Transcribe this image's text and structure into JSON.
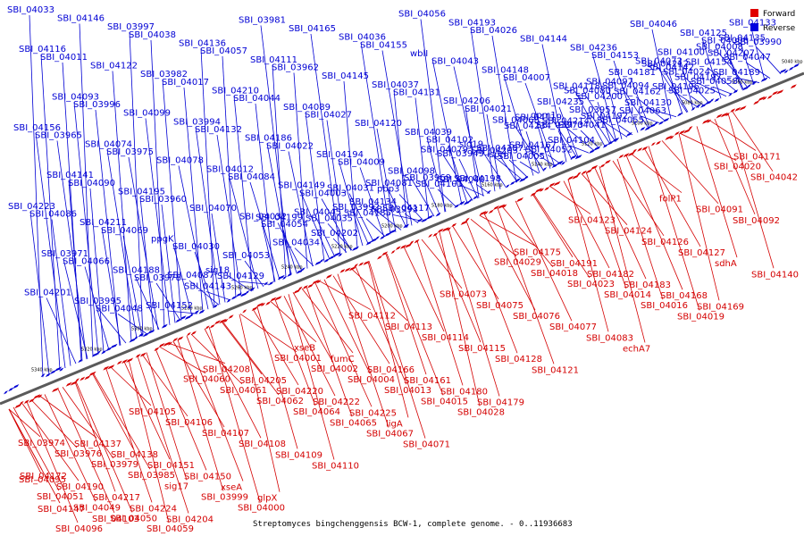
{
  "caption": "Streptomyces bingchenggensis BCW-1, complete genome. - 0..11936683",
  "legend": [
    {
      "label": "Forward",
      "color": "#e00000"
    },
    {
      "label": "Reverse",
      "color": "#0000e0"
    }
  ],
  "colors": {
    "forward": "#d40000",
    "reverse": "#0000d4",
    "backbone": "#5a5a5a"
  },
  "ticks": [
    "5340 kbp",
    "5320 kbp",
    "5300 kbp",
    "5280 kbp",
    "5260 kbp",
    "5240 kbp",
    "5220 kbp",
    "5200 kbp",
    "5180 kbp",
    "5160 kbp",
    "5140 kbp",
    "5120 kbp",
    "5100 kbp",
    "5080 kbp",
    "5060 kbp",
    "5040 kbp"
  ],
  "reverse_labels": [
    "SBI_04033",
    "SBI_04011",
    "SBI_03996",
    "SBI_03975",
    "SBI_03960",
    "SBI_04030",
    "sig18",
    "SBI_03981",
    "SBI_03962",
    "SBI_04027",
    "SBI_04009",
    "SBI_03993",
    "SBI_03969",
    "SBI_03949",
    "SBI_04026",
    "SBI_04007",
    "SBI_03973",
    "SBI_03957",
    "SBI_04094",
    "SBI_04072",
    "SBI_04025",
    "SBI_04006",
    "SBI_03990",
    "SBI_03965",
    "SBI_04090",
    "SBI_04069",
    "SBI_03978",
    "SBI_04087",
    "SBI_04057",
    "SBI_04044",
    "SBI_04022",
    "SBI_04003",
    "SBI_03992",
    "SBI_04081",
    "SBI_04056",
    "SBI_04043",
    "SBI_04021",
    "SBI_04005",
    "gpm1",
    "SBI_04080",
    "SBI_04055",
    "SBI_04046",
    "SBI_04024",
    "SBI_04008",
    "SBI_04133",
    "SBI_04086",
    "SBI_04066",
    "SBI_04048",
    "SBI_04038",
    "SBI_04017",
    "SBI_04132",
    "SBI_04084",
    "SBI_04054",
    "SBI_04045",
    "SBI_04031",
    "SBI_04155",
    "SBI_04131",
    "SBI_04102",
    "sig19",
    "SBI_04068",
    "SBI_04052",
    "SBI_04041",
    "SBI_04153",
    "SBI_04130",
    "SBI_04100",
    "SBI_04058",
    "SBI_04047",
    "SBI_04201",
    "SBI_04146",
    "SBI_04122",
    "SBI_04099",
    "SBI_04078",
    "SBI_04070",
    "SBI_04053",
    "SBI_04199",
    "SBI_04165",
    "SBI_04145",
    "SBI_04120",
    "SBI_04098",
    "SBI_04079",
    "SBI_04198",
    "ispH",
    "SBI_04144",
    "SBI_04118",
    "SBI_04097",
    "SBI_04063",
    "SBI_04196",
    "SBI_04154",
    "SBI_04135",
    "SBI_04116",
    "SBI_04093",
    "SBI_04074",
    "SBI_04195",
    "ppgK",
    "SBI_04143",
    "SBI_04129",
    "SBI_04111",
    "SBI_04089",
    "SBI_04194",
    "SBI_04134",
    "SBI_04117",
    "SBI_04101",
    "SBI_04193",
    "SBI_04148",
    "SBI_04119",
    "SBI_04104",
    "SBI_04192",
    "SBI_04162",
    "SBI_04142",
    "SBI_04125",
    "SBI_04189",
    "SBI_04156",
    "SBI_04141",
    "SBI_04211",
    "SBI_04188",
    "SBI_04152",
    "SBI_04136",
    "SBI_04210",
    "SBI_04186",
    "SBI_04149",
    "SBI_04202",
    "SBI_04185",
    "pbp3",
    "wblI",
    "SBI_04206",
    "SBI_04187",
    "SBI_04167",
    "SBI_04214",
    "SBI_04200",
    "SBI_04181",
    "SBI_04212",
    "SBI_04197",
    "SBI_04207",
    "SBI_04223",
    "SBI_03971",
    "SBI_03995",
    "SBI_03997",
    "SBI_03982",
    "SBI_03994",
    "SBI_04012",
    "SBI_04032",
    "SBI_04034",
    "SBI_04035",
    "SBI_04036",
    "SBI_04037",
    "SBI_04039",
    "SBI_04040",
    "SBI_04203",
    "SBI_04234",
    "SBI_04235",
    "SBI_04236"
  ],
  "forward_labels": [
    "SBI_03974",
    "SBI_03976",
    "SBI_03979",
    "SBI_03985",
    "sig17",
    "SBI_03999",
    "SBI_04000",
    "SBI_04001",
    "SBI_04002",
    "SBI_04004",
    "SBI_04013",
    "SBI_04015",
    "SBI_04028",
    "SBI_04029",
    "SBI_04018",
    "SBI_04023",
    "SBI_04014",
    "SBI_04016",
    "SBI_04019",
    "SBI_04020",
    "SBI_04042",
    "SBI_04051",
    "SBI_04049",
    "SBI_04050",
    "SBI_04059",
    "SBI_04060",
    "SBI_04061",
    "SBI_04062",
    "SBI_04064",
    "SBI_04065",
    "SBI_04067",
    "SBI_04071",
    "SBI_04073",
    "SBI_04075",
    "SBI_04076",
    "SBI_04077",
    "SBI_04083",
    "echA7",
    "folP1",
    "SBI_04091",
    "SBI_04092",
    "SBI_04095",
    "SBI_04096",
    "SBI_04103",
    "SBI_04105",
    "SBI_04106",
    "SBI_04107",
    "SBI_04108",
    "SBI_04109",
    "SBI_04110",
    "SBI_04112",
    "SBI_04113",
    "SBI_04114",
    "SBI_04115",
    "SBI_04128",
    "SBI_04121",
    "SBI_04123",
    "SBI_04124",
    "SBI_04126",
    "SBI_04127",
    "sdhA",
    "SBI_04140",
    "SBI_04147",
    "SBI_04137",
    "SBI_04138",
    "SBI_04151",
    "SBI_04150",
    "xseA",
    "glpX",
    "xseB",
    "fumC",
    "SBI_04166",
    "SBI_04161",
    "SBI_04180",
    "SBI_04179",
    "SBI_04175",
    "SBI_04191",
    "SBI_04182",
    "SBI_04183",
    "SBI_04168",
    "SBI_04169",
    "SBI_04171",
    "SBI_04172",
    "SBI_04190",
    "SBI_04217",
    "SBI_04224",
    "SBI_04204",
    "SBI_04208",
    "SBI_04205",
    "SBI_04220",
    "SBI_04222",
    "SBI_04225",
    "ligA"
  ]
}
